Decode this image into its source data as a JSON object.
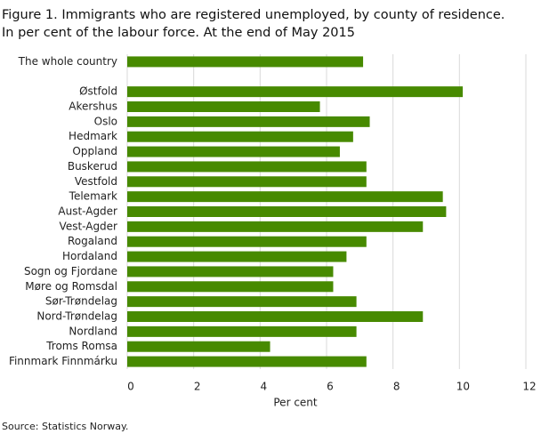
{
  "chart_data": {
    "type": "bar",
    "orientation": "horizontal",
    "title": "Figure 1. Immigrants who are registered unemployed, by county of residence.",
    "subtitle": "In per cent of the labour force. At the end of May 2015",
    "x_label": "Per cent",
    "source": "Source: Statistics Norway.",
    "categories": [
      "The whole country",
      null,
      "Østfold",
      "Akershus",
      "Oslo",
      "Hedmark",
      "Oppland",
      "Buskerud",
      "Vestfold",
      "Telemark",
      "Aust-Agder",
      "Vest-Agder",
      "Rogaland",
      "Hordaland",
      "Sogn og Fjordane",
      "Møre og Romsdal",
      "Sør-Trøndelag",
      "Nord-Trøndelag",
      "Nordland",
      "Troms Romsa",
      "Finnmark Finnmárku"
    ],
    "values": [
      7.1,
      null,
      10.1,
      5.8,
      7.3,
      6.8,
      6.4,
      7.2,
      7.2,
      9.5,
      9.6,
      8.9,
      7.2,
      6.6,
      6.2,
      6.2,
      6.9,
      8.9,
      6.9,
      4.3,
      7.2
    ],
    "color": "#478a00",
    "xlim": [
      0,
      12
    ],
    "xticks": [
      0,
      2,
      4,
      6,
      8,
      10,
      12
    ],
    "grid": true
  }
}
